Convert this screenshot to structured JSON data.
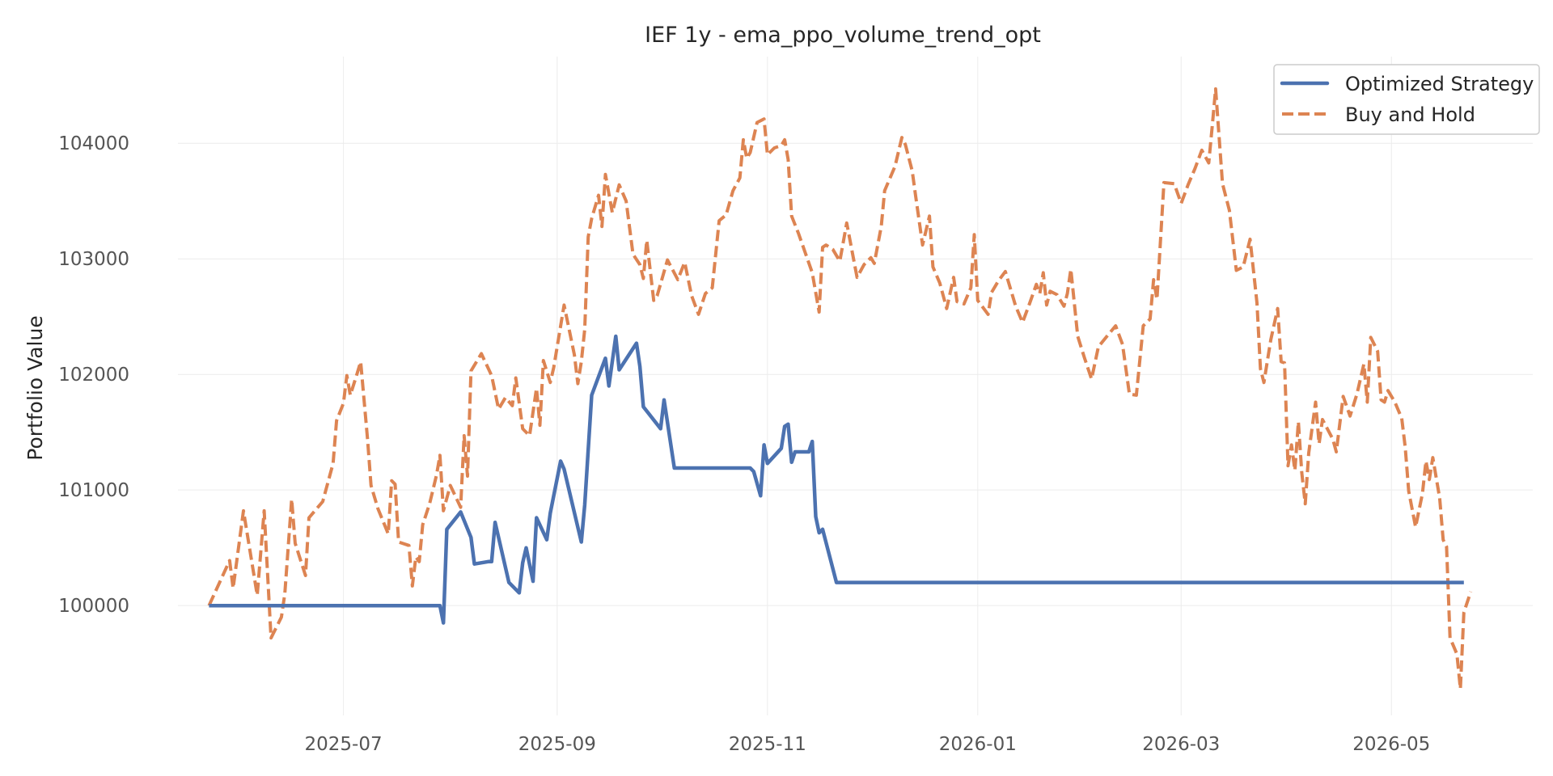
{
  "chart_data": {
    "type": "line",
    "title": "IEF 1y - ema_ppo_volume_trend_opt",
    "xlabel": "",
    "ylabel": "Portfolio Value",
    "xlim": [
      "2025-05-14",
      "2026-06-11"
    ],
    "ylim": [
      99050,
      104750
    ],
    "grid": true,
    "legend": {
      "placement": "top-right",
      "entries": [
        "Optimized Strategy",
        "Buy and Hold"
      ]
    },
    "x_ticks": [
      "2025-07",
      "2025-09",
      "2025-11",
      "2026-01",
      "2026-03",
      "2026-05"
    ],
    "y_ticks": [
      "100000",
      "101000",
      "102000",
      "103000",
      "104000"
    ],
    "series": [
      {
        "name": "Optimized Strategy",
        "color": "#4c72b0",
        "style": "solid",
        "points": [
          [
            "2025-05-23",
            100000
          ],
          [
            "2025-07-29",
            100000
          ],
          [
            "2025-07-30",
            99850
          ],
          [
            "2025-07-31",
            100660
          ],
          [
            "2025-08-04",
            100810
          ],
          [
            "2025-08-07",
            100590
          ],
          [
            "2025-08-08",
            100360
          ],
          [
            "2025-08-12",
            100380
          ],
          [
            "2025-08-13",
            100380
          ],
          [
            "2025-08-14",
            100720
          ],
          [
            "2025-08-18",
            100200
          ],
          [
            "2025-08-21",
            100110
          ],
          [
            "2025-08-22",
            100370
          ],
          [
            "2025-08-23",
            100500
          ],
          [
            "2025-08-25",
            100210
          ],
          [
            "2025-08-26",
            100760
          ],
          [
            "2025-08-29",
            100570
          ],
          [
            "2025-08-30",
            100800
          ],
          [
            "2025-09-02",
            101250
          ],
          [
            "2025-09-03",
            101180
          ],
          [
            "2025-09-08",
            100550
          ],
          [
            "2025-09-09",
            100870
          ],
          [
            "2025-09-11",
            101820
          ],
          [
            "2025-09-15",
            102140
          ],
          [
            "2025-09-16",
            101900
          ],
          [
            "2025-09-18",
            102330
          ],
          [
            "2025-09-19",
            102040
          ],
          [
            "2025-09-24",
            102270
          ],
          [
            "2025-09-25",
            102070
          ],
          [
            "2025-09-26",
            101720
          ],
          [
            "2025-10-01",
            101530
          ],
          [
            "2025-10-02",
            101780
          ],
          [
            "2025-10-05",
            101190
          ],
          [
            "2025-10-20",
            101190
          ],
          [
            "2025-10-27",
            101190
          ],
          [
            "2025-10-28",
            101160
          ],
          [
            "2025-10-30",
            100950
          ],
          [
            "2025-10-31",
            101390
          ],
          [
            "2025-11-01",
            101230
          ],
          [
            "2025-11-05",
            101360
          ],
          [
            "2025-11-06",
            101550
          ],
          [
            "2025-11-07",
            101570
          ],
          [
            "2025-11-08",
            101240
          ],
          [
            "2025-11-09",
            101330
          ],
          [
            "2025-11-13",
            101330
          ],
          [
            "2025-11-14",
            101420
          ],
          [
            "2025-11-15",
            100770
          ],
          [
            "2025-11-16",
            100630
          ],
          [
            "2025-11-17",
            100660
          ],
          [
            "2025-11-21",
            100200
          ],
          [
            "2026-05-22",
            100200
          ]
        ]
      },
      {
        "name": "Buy and Hold",
        "color": "#dd8452",
        "style": "dashed",
        "points": [
          [
            "2025-05-23",
            100000
          ],
          [
            "2025-05-29",
            100390
          ],
          [
            "2025-05-30",
            100150
          ],
          [
            "2025-06-02",
            100820
          ],
          [
            "2025-06-06",
            100090
          ],
          [
            "2025-06-08",
            100820
          ],
          [
            "2025-06-10",
            99720
          ],
          [
            "2025-06-13",
            99900
          ],
          [
            "2025-06-14",
            100100
          ],
          [
            "2025-06-16",
            100920
          ],
          [
            "2025-06-17",
            100540
          ],
          [
            "2025-06-20",
            100260
          ],
          [
            "2025-06-21",
            100760
          ],
          [
            "2025-06-25",
            100900
          ],
          [
            "2025-06-28",
            101230
          ],
          [
            "2025-06-29",
            101600
          ],
          [
            "2025-07-01",
            101750
          ],
          [
            "2025-07-02",
            101990
          ],
          [
            "2025-07-03",
            101820
          ],
          [
            "2025-07-05",
            102010
          ],
          [
            "2025-07-06",
            102110
          ],
          [
            "2025-07-08",
            101440
          ],
          [
            "2025-07-09",
            101040
          ],
          [
            "2025-07-11",
            100840
          ],
          [
            "2025-07-14",
            100620
          ],
          [
            "2025-07-15",
            101080
          ],
          [
            "2025-07-16",
            101050
          ],
          [
            "2025-07-17",
            100550
          ],
          [
            "2025-07-20",
            100520
          ],
          [
            "2025-07-21",
            100170
          ],
          [
            "2025-07-22",
            100420
          ],
          [
            "2025-07-23",
            100380
          ],
          [
            "2025-07-24",
            100700
          ],
          [
            "2025-07-26",
            100880
          ],
          [
            "2025-07-28",
            101130
          ],
          [
            "2025-07-29",
            101300
          ],
          [
            "2025-07-30",
            100820
          ],
          [
            "2025-08-01",
            101040
          ],
          [
            "2025-08-04",
            100850
          ],
          [
            "2025-08-05",
            101470
          ],
          [
            "2025-08-06",
            101120
          ],
          [
            "2025-08-07",
            102030
          ],
          [
            "2025-08-10",
            102180
          ],
          [
            "2025-08-13",
            101990
          ],
          [
            "2025-08-15",
            101700
          ],
          [
            "2025-08-17",
            101800
          ],
          [
            "2025-08-19",
            101730
          ],
          [
            "2025-08-20",
            101970
          ],
          [
            "2025-08-22",
            101530
          ],
          [
            "2025-08-24",
            101470
          ],
          [
            "2025-08-26",
            101880
          ],
          [
            "2025-08-27",
            101560
          ],
          [
            "2025-08-28",
            102120
          ],
          [
            "2025-08-30",
            101930
          ],
          [
            "2025-08-31",
            102060
          ],
          [
            "2025-09-03",
            102600
          ],
          [
            "2025-09-06",
            102170
          ],
          [
            "2025-09-07",
            101920
          ],
          [
            "2025-09-08",
            102110
          ],
          [
            "2025-09-09",
            102390
          ],
          [
            "2025-09-10",
            103190
          ],
          [
            "2025-09-11",
            103350
          ],
          [
            "2025-09-13",
            103550
          ],
          [
            "2025-09-14",
            103280
          ],
          [
            "2025-09-15",
            103730
          ],
          [
            "2025-09-17",
            103400
          ],
          [
            "2025-09-19",
            103640
          ],
          [
            "2025-09-21",
            103500
          ],
          [
            "2025-09-23",
            103040
          ],
          [
            "2025-09-25",
            102950
          ],
          [
            "2025-09-26",
            102830
          ],
          [
            "2025-09-27",
            103160
          ],
          [
            "2025-09-29",
            102640
          ],
          [
            "2025-09-30",
            102680
          ],
          [
            "2025-10-03",
            102990
          ],
          [
            "2025-10-06",
            102820
          ],
          [
            "2025-10-08",
            102970
          ],
          [
            "2025-10-10",
            102680
          ],
          [
            "2025-10-12",
            102520
          ],
          [
            "2025-10-14",
            102700
          ],
          [
            "2025-10-16",
            102750
          ],
          [
            "2025-10-18",
            103330
          ],
          [
            "2025-10-20",
            103380
          ],
          [
            "2025-10-22",
            103590
          ],
          [
            "2025-10-24",
            103700
          ],
          [
            "2025-10-25",
            104030
          ],
          [
            "2025-10-26",
            103870
          ],
          [
            "2025-10-27",
            103920
          ],
          [
            "2025-10-29",
            104180
          ],
          [
            "2025-10-31",
            104210
          ],
          [
            "2025-11-01",
            103900
          ],
          [
            "2025-11-03",
            103960
          ],
          [
            "2025-11-05",
            103980
          ],
          [
            "2025-11-06",
            104030
          ],
          [
            "2025-11-07",
            103860
          ],
          [
            "2025-11-08",
            103370
          ],
          [
            "2025-11-10",
            103220
          ],
          [
            "2025-11-12",
            103050
          ],
          [
            "2025-11-14",
            102880
          ],
          [
            "2025-11-16",
            102540
          ],
          [
            "2025-11-17",
            103100
          ],
          [
            "2025-11-18",
            103120
          ],
          [
            "2025-11-20",
            103080
          ],
          [
            "2025-11-22",
            102980
          ],
          [
            "2025-11-24",
            103310
          ],
          [
            "2025-11-27",
            102840
          ],
          [
            "2025-11-29",
            102950
          ],
          [
            "2025-12-01",
            103010
          ],
          [
            "2025-12-02",
            102960
          ],
          [
            "2025-12-04",
            103280
          ],
          [
            "2025-12-05",
            103590
          ],
          [
            "2025-12-08",
            103800
          ],
          [
            "2025-12-10",
            104050
          ],
          [
            "2025-12-11",
            103990
          ],
          [
            "2025-12-13",
            103760
          ],
          [
            "2025-12-14",
            103540
          ],
          [
            "2025-12-16",
            103120
          ],
          [
            "2025-12-18",
            103370
          ],
          [
            "2025-12-19",
            102930
          ],
          [
            "2025-12-21",
            102790
          ],
          [
            "2025-12-23",
            102570
          ],
          [
            "2025-12-25",
            102840
          ],
          [
            "2025-12-26",
            102630
          ],
          [
            "2025-12-28",
            102610
          ],
          [
            "2025-12-30",
            102750
          ],
          [
            "2025-12-31",
            103210
          ],
          [
            "2026-01-01",
            102640
          ],
          [
            "2026-01-04",
            102520
          ],
          [
            "2026-01-05",
            102710
          ],
          [
            "2026-01-07",
            102810
          ],
          [
            "2026-01-09",
            102890
          ],
          [
            "2026-01-12",
            102590
          ],
          [
            "2026-01-14",
            102450
          ],
          [
            "2026-01-16",
            102610
          ],
          [
            "2026-01-18",
            102780
          ],
          [
            "2026-01-19",
            102700
          ],
          [
            "2026-01-20",
            102880
          ],
          [
            "2026-01-21",
            102600
          ],
          [
            "2026-01-22",
            102720
          ],
          [
            "2026-01-24",
            102690
          ],
          [
            "2026-01-26",
            102590
          ],
          [
            "2026-01-27",
            102700
          ],
          [
            "2026-01-28",
            102910
          ],
          [
            "2026-01-30",
            102330
          ],
          [
            "2026-02-01",
            102140
          ],
          [
            "2026-02-03",
            101960
          ],
          [
            "2026-02-05",
            102240
          ],
          [
            "2026-02-08",
            102350
          ],
          [
            "2026-02-10",
            102420
          ],
          [
            "2026-02-12",
            102260
          ],
          [
            "2026-02-14",
            101830
          ],
          [
            "2026-02-16",
            101820
          ],
          [
            "2026-02-18",
            102420
          ],
          [
            "2026-02-20",
            102480
          ],
          [
            "2026-02-21",
            102820
          ],
          [
            "2026-02-22",
            102650
          ],
          [
            "2026-02-24",
            103660
          ],
          [
            "2026-02-27",
            103650
          ],
          [
            "2026-03-01",
            103480
          ],
          [
            "2026-03-03",
            103640
          ],
          [
            "2026-03-05",
            103780
          ],
          [
            "2026-03-07",
            103940
          ],
          [
            "2026-03-09",
            103830
          ],
          [
            "2026-03-10",
            104140
          ],
          [
            "2026-03-11",
            104470
          ],
          [
            "2026-03-13",
            103650
          ],
          [
            "2026-03-15",
            103420
          ],
          [
            "2026-03-17",
            102900
          ],
          [
            "2026-03-19",
            102930
          ],
          [
            "2026-03-21",
            103170
          ],
          [
            "2026-03-23",
            102620
          ],
          [
            "2026-03-24",
            102050
          ],
          [
            "2026-03-25",
            101930
          ],
          [
            "2026-03-27",
            102300
          ],
          [
            "2026-03-29",
            102570
          ],
          [
            "2026-03-30",
            102110
          ],
          [
            "2026-03-31",
            102100
          ],
          [
            "2026-04-01",
            101210
          ],
          [
            "2026-04-02",
            101390
          ],
          [
            "2026-04-03",
            101170
          ],
          [
            "2026-04-04",
            101590
          ],
          [
            "2026-04-05",
            101150
          ],
          [
            "2026-04-06",
            100880
          ],
          [
            "2026-04-07",
            101320
          ],
          [
            "2026-04-09",
            101760
          ],
          [
            "2026-04-10",
            101400
          ],
          [
            "2026-04-11",
            101610
          ],
          [
            "2026-04-14",
            101440
          ],
          [
            "2026-04-15",
            101330
          ],
          [
            "2026-04-17",
            101810
          ],
          [
            "2026-04-19",
            101640
          ],
          [
            "2026-04-21",
            101830
          ],
          [
            "2026-04-23",
            102090
          ],
          [
            "2026-04-24",
            101760
          ],
          [
            "2026-04-25",
            102320
          ],
          [
            "2026-04-27",
            102200
          ],
          [
            "2026-04-28",
            101780
          ],
          [
            "2026-04-29",
            101760
          ],
          [
            "2026-04-30",
            101860
          ],
          [
            "2026-05-02",
            101760
          ],
          [
            "2026-05-04",
            101620
          ],
          [
            "2026-05-05",
            101370
          ],
          [
            "2026-05-06",
            100990
          ],
          [
            "2026-05-08",
            100680
          ],
          [
            "2026-05-10",
            100970
          ],
          [
            "2026-05-11",
            101250
          ],
          [
            "2026-05-12",
            101090
          ],
          [
            "2026-05-13",
            101280
          ],
          [
            "2026-05-15",
            100930
          ],
          [
            "2026-05-16",
            100570
          ],
          [
            "2026-05-17",
            100510
          ],
          [
            "2026-05-18",
            99720
          ],
          [
            "2026-05-19",
            99650
          ],
          [
            "2026-05-20",
            99580
          ],
          [
            "2026-05-21",
            99280
          ],
          [
            "2026-05-22",
            99940
          ],
          [
            "2026-05-24",
            100120
          ]
        ]
      }
    ]
  }
}
